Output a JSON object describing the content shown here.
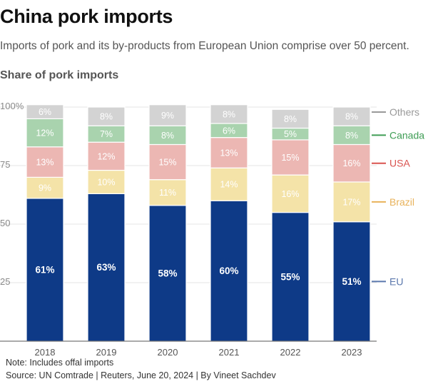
{
  "header": {
    "title": "China pork imports",
    "subtitle": "Imports of pork and its by-products from European Union comprise over 50 percent.",
    "section": "Share of pork imports"
  },
  "footer": {
    "note": "Note: Includes offal imports",
    "source": "Source: UN Comtrade | Reuters, June 20, 2024 | By Vineet Sachdev"
  },
  "colors": {
    "EU": "#0e3a87",
    "Brazil": "#f4e3a8",
    "USA": "#ecb7b3",
    "Canada": "#a9d3ae",
    "Others": "#d3d3d3",
    "label_Brazil": "#e8b25a",
    "label_USA": "#d9534f",
    "label_Canada": "#3f9d55",
    "label_Others": "#999999",
    "label_EU": "#5b78ad"
  },
  "chart_data": {
    "type": "bar",
    "stacked": true,
    "categories": [
      "2018",
      "2019",
      "2020",
      "2021",
      "2022",
      "2023"
    ],
    "series": [
      {
        "name": "EU",
        "values": [
          61,
          63,
          58,
          60,
          55,
          51
        ],
        "labels": [
          "61%",
          "63%",
          "58%",
          "60%",
          "55%",
          "51%"
        ]
      },
      {
        "name": "Brazil",
        "values": [
          9,
          10,
          11,
          14,
          16,
          17
        ],
        "labels": [
          "9%",
          "10%",
          "11%",
          "14%",
          "16%",
          "17%"
        ]
      },
      {
        "name": "USA",
        "values": [
          13,
          12,
          15,
          13,
          15,
          16
        ],
        "labels": [
          "13%",
          "12%",
          "15%",
          "13%",
          "15%",
          "16%"
        ]
      },
      {
        "name": "Canada",
        "values": [
          12,
          7,
          8,
          6,
          5,
          8
        ],
        "labels": [
          "12%",
          "7%",
          "8%",
          "6%",
          "5%",
          "8%"
        ]
      },
      {
        "name": "Others",
        "values": [
          6,
          8,
          9,
          8,
          8,
          8
        ],
        "labels": [
          "6%",
          "8%",
          "9%",
          "8%",
          "8%",
          "8%"
        ]
      }
    ],
    "yticks": [
      "100%",
      "75",
      "50",
      "25"
    ],
    "ytick_values": [
      100,
      75,
      50,
      25
    ],
    "ylim": [
      0,
      100
    ],
    "legend_placement": "right, aligned with 2023 bar",
    "grid": true
  }
}
